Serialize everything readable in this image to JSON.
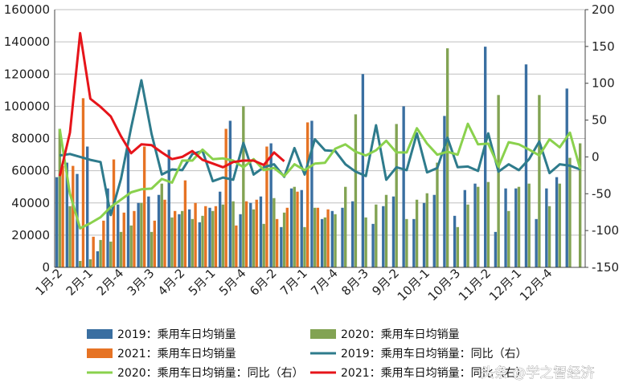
{
  "chart_data": {
    "type": "bar+line",
    "left_axis": {
      "ylim": [
        0,
        160000
      ],
      "ticks": [
        "0",
        "20000",
        "40000",
        "60000",
        "80000",
        "100000",
        "120000",
        "140000",
        "160000"
      ]
    },
    "right_axis": {
      "ylim": [
        -150,
        200
      ],
      "ticks": [
        "-150",
        "-100",
        "-50",
        "0",
        "50",
        "100",
        "150",
        "200"
      ]
    },
    "x_tick_labels": [
      "1月-2",
      "2月-1",
      "2月-4",
      "3月-3",
      "4月-2",
      "5月-1",
      "5月-4",
      "6月-2",
      "7月-1",
      "7月-4",
      "8月-3",
      "9月-2",
      "10月-1",
      "10月-3",
      "11月-2",
      "12月-1",
      "12月-4"
    ],
    "series": [
      {
        "name": "2019：乘用车日均销量",
        "kind": "bar",
        "axis": "left",
        "color": "#3a6fa1",
        "values": [
          56000,
          65000,
          58000,
          75000,
          10000,
          49000,
          39000,
          73000,
          40000,
          44000,
          45000,
          73000,
          33000,
          36000,
          28000,
          37000,
          47000,
          91000,
          33000,
          40000,
          44000,
          77000,
          25000,
          49000,
          48000,
          91000,
          30000,
          35000,
          37000,
          41000,
          120000,
          27000,
          38000,
          44000,
          100000,
          30000,
          40000,
          45000,
          94000,
          32000,
          48000,
          52000,
          137000,
          22000,
          49000,
          49000,
          126000,
          30000,
          49000,
          56000,
          111000
        ]
      },
      {
        "name": "2020：乘用车日均销量",
        "kind": "bar",
        "axis": "left",
        "color": "#82a353",
        "values": [
          86000,
          38000,
          4000,
          5000,
          17000,
          16000,
          22000,
          26000,
          40000,
          22000,
          52000,
          31000,
          35000,
          30000,
          32000,
          35000,
          39000,
          41000,
          100000,
          36000,
          27000,
          43000,
          34000,
          50000,
          25000,
          37000,
          31000,
          33000,
          50000,
          95000,
          31000,
          39000,
          45000,
          89000,
          30000,
          42000,
          46000,
          65000,
          136000,
          25000,
          39000,
          50000,
          53000,
          107000,
          35000,
          50000,
          52000,
          107000,
          38000,
          52000,
          68000,
          77000
        ]
      },
      {
        "name": "2021：乘用车日均销量",
        "kind": "bar",
        "axis": "left",
        "color": "#e67324",
        "values": [
          63000,
          63000,
          105000,
          19000,
          29000,
          67000,
          34000,
          35000,
          75000,
          29000,
          42000,
          35000,
          54000,
          40000,
          38000,
          38000,
          86000,
          26000,
          41000,
          42000,
          75000,
          30000,
          37000,
          47000,
          90000,
          37000,
          36000
        ]
      },
      {
        "name": "2019：乘用车日均销量：同比（右）",
        "kind": "line",
        "axis": "right",
        "color": "#2e7b8c",
        "values": [
          2,
          4,
          0,
          -4,
          -7,
          -79,
          -30,
          40,
          104,
          31,
          -24,
          -17,
          -18,
          4,
          8,
          -33,
          -28,
          -31,
          19,
          -24,
          -14,
          -10,
          -27,
          12,
          -24,
          24,
          9,
          8,
          -10,
          -20,
          -26,
          43,
          -31,
          -14,
          -18,
          32,
          -21,
          -15,
          26,
          -14,
          -13,
          -19,
          32,
          -20,
          -10,
          -18,
          -3,
          21,
          -22,
          -10,
          -12,
          -17
        ]
      },
      {
        "name": "2020：乘用车日均销量：同比（右）",
        "kind": "line",
        "axis": "right",
        "color": "#8ad14d",
        "values": [
          38,
          -50,
          -97,
          -90,
          -82,
          -68,
          -58,
          -48,
          -44,
          -43,
          -30,
          -35,
          -5,
          -5,
          10,
          -3,
          -2,
          -5,
          -14,
          -3,
          -18,
          -15,
          -26,
          -10,
          -18,
          -9,
          -8,
          11,
          17,
          7,
          2,
          9,
          22,
          6,
          6,
          39,
          18,
          3,
          7,
          3,
          45,
          17,
          18,
          -13,
          20,
          17,
          10,
          2,
          24,
          13,
          33,
          -16
        ]
      },
      {
        "name": "2021：乘用车日均销量：同比（右）",
        "kind": "line",
        "axis": "right",
        "color": "#e6141a",
        "values": [
          -26,
          33,
          168,
          79,
          68,
          55,
          28,
          5,
          17,
          16,
          6,
          -3,
          0,
          8,
          -4,
          -9,
          -14,
          -7,
          -5,
          -5,
          -11,
          6,
          -6
        ]
      }
    ]
  },
  "watermark": "头条 @学之智经济"
}
